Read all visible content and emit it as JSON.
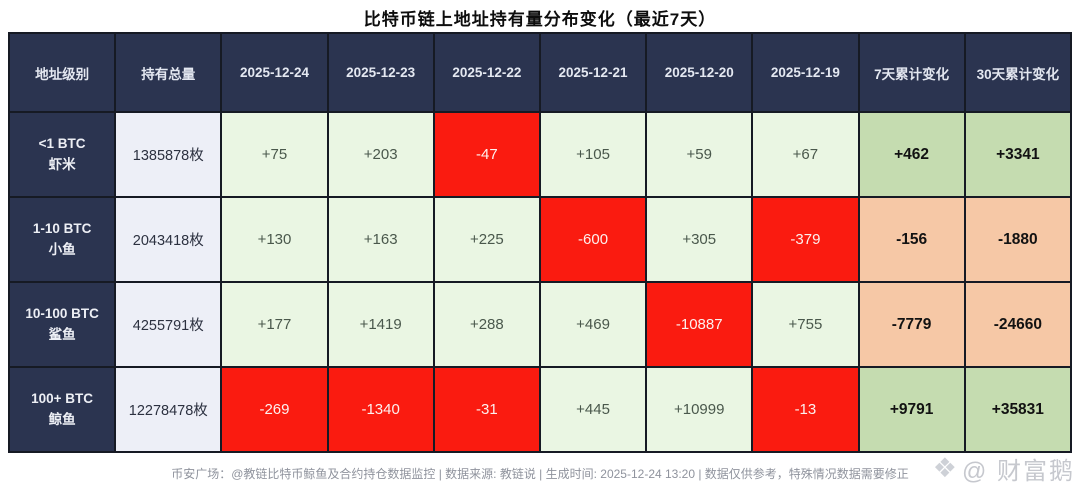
{
  "chart_data": {
    "type": "table",
    "title": "比特币链上地址持有量分布变化（最近7天）",
    "columns": [
      "地址级别",
      "持有总量",
      "2025-12-24",
      "2025-12-23",
      "2025-12-22",
      "2025-12-21",
      "2025-12-20",
      "2025-12-19",
      "7天累计变化",
      "30天累计变化"
    ],
    "rows": [
      {
        "level": [
          "<1 BTC",
          "虾米"
        ],
        "total": "1385878枚",
        "daily": [
          "+75",
          "+203",
          "-47",
          "+105",
          "+59",
          "+67"
        ],
        "cum7": "+462",
        "cum30": "+3341"
      },
      {
        "level": [
          "1-10 BTC",
          "小鱼"
        ],
        "total": "2043418枚",
        "daily": [
          "+130",
          "+163",
          "+225",
          "-600",
          "+305",
          "-379"
        ],
        "cum7": "-156",
        "cum30": "-1880"
      },
      {
        "level": [
          "10-100 BTC",
          "鲨鱼"
        ],
        "total": "4255791枚",
        "daily": [
          "+177",
          "+1419",
          "+288",
          "+469",
          "-10887",
          "+755"
        ],
        "cum7": "-7779",
        "cum30": "-24660"
      },
      {
        "level": [
          "100+ BTC",
          "鲸鱼"
        ],
        "total": "12278478枚",
        "daily": [
          "-269",
          "-1340",
          "-31",
          "+445",
          "+10999",
          "-13"
        ],
        "cum7": "+9791",
        "cum30": "+35831"
      }
    ]
  },
  "footer": "币安广场：@教链比特币鲸鱼及合约持仓数据监控 | 数据来源: 教链说 | 生成时间: 2025-12-24 13:20 | 数据仅供参考，特殊情况数据需要修正",
  "watermark": {
    "icon": "❖",
    "text": "@ 财富鹅"
  },
  "colors": {
    "header_bg": "#2b3450",
    "total_bg": "#edeff7",
    "daily_positive_bg": "#eaf6e3",
    "negative_bg": "#fa1b10",
    "cum_positive_bg": "#c5dcb0",
    "cum_negative_bg": "#f6c8a6"
  }
}
